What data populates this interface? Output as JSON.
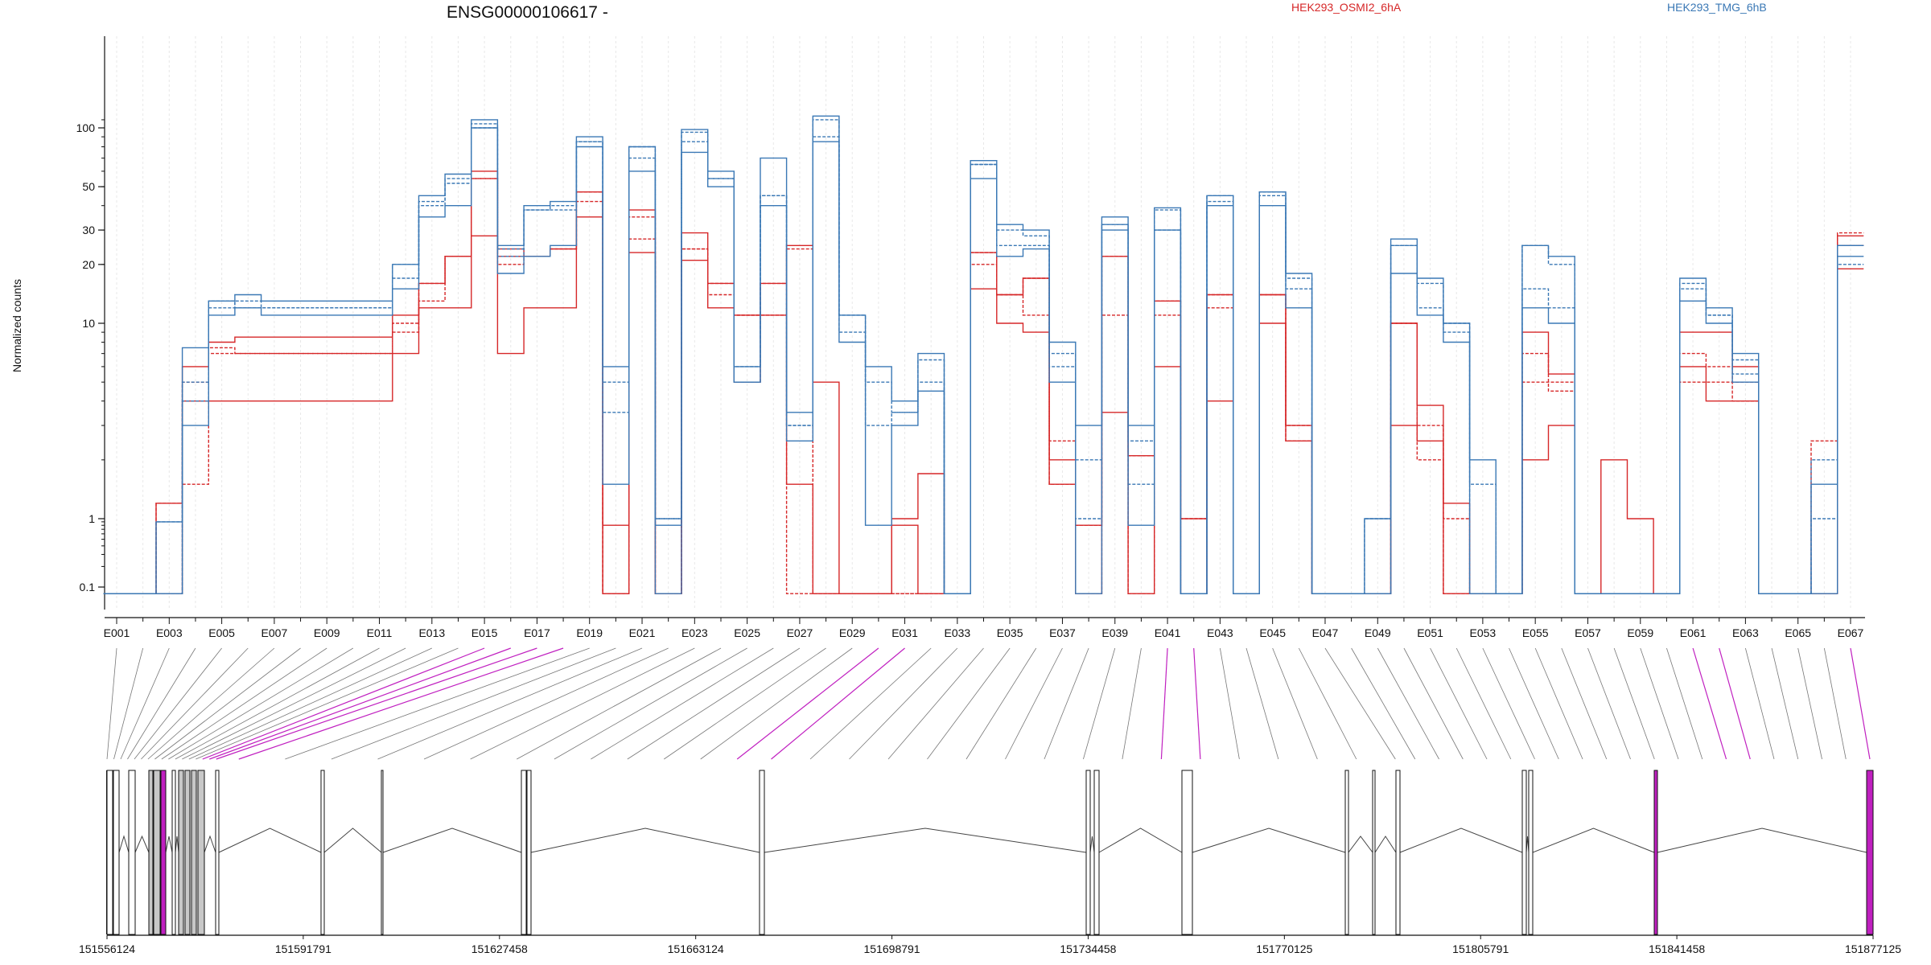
{
  "chart_data": {
    "type": "line",
    "title": "ENSG00000106617 -",
    "ylabel": "Normalized counts",
    "xlabel": "",
    "y_scale": "log",
    "y_ticks": [
      "100",
      "50",
      "30",
      "20",
      "10",
      "1",
      "0.1"
    ],
    "x_tick_labels": [
      "E001",
      "E003",
      "E005",
      "E007",
      "E009",
      "E011",
      "E013",
      "E015",
      "E017",
      "E019",
      "E021",
      "E023",
      "E025",
      "E027",
      "E029",
      "E031",
      "E033",
      "E035",
      "E037",
      "E039",
      "E041",
      "E043",
      "E045",
      "E047",
      "E049",
      "E051",
      "E053",
      "E055",
      "E057",
      "E059",
      "E061",
      "E063",
      "E065",
      "E067"
    ],
    "legend": [
      {
        "label": "HEK293_OSMI2_6hA",
        "color": "#d62728"
      },
      {
        "label": "HEK293_TMG_6hB",
        "color": "#3a78b5"
      }
    ],
    "genomic_ticks": [
      "151556124",
      "151591791",
      "151627458",
      "151663124",
      "151698791",
      "151734458",
      "151770125",
      "151805791",
      "151841458",
      "151877125"
    ],
    "highlight_color": "#c020c0",
    "series": [
      {
        "group": "HEK293_OSMI2_6hA",
        "color": "#d62728",
        "values": [
          0.08,
          0.08,
          1.2,
          6.0,
          8.0,
          8.5,
          8.5,
          8.5,
          8.5,
          8.5,
          8.5,
          11.0,
          16.0,
          22.0,
          60.0,
          24.0,
          22.0,
          24.0,
          47.0,
          0.08,
          38.0,
          0.08,
          29.0,
          16.0,
          11.0,
          16.0,
          25.0,
          5.0,
          0.08,
          0.08,
          0.8,
          0.08,
          0.08,
          23.0,
          14.0,
          17.0,
          2.0,
          0.8,
          22.0,
          2.1,
          13.0,
          1.0,
          14.0,
          0.08,
          14.0,
          3.0,
          0.08,
          0.08,
          0.08,
          10.0,
          3.8,
          1.2,
          0.08,
          0.08,
          9.0,
          5.5,
          0.08,
          2.0,
          1.0,
          0.08,
          9.0,
          9.0,
          6.0,
          0.08,
          0.08,
          0.08,
          28.0
        ]
      },
      {
        "group": "HEK293_OSMI2_6hA",
        "color": "#d62728",
        "values": [
          0.08,
          0.08,
          1.2,
          5.0,
          7.5,
          7.0,
          7.0,
          7.0,
          7.0,
          7.0,
          7.0,
          10.0,
          13.0,
          22.0,
          55.0,
          20.0,
          22.0,
          24.0,
          42.0,
          0.08,
          35.0,
          0.08,
          24.0,
          14.0,
          11.0,
          11.0,
          24.0,
          0.08,
          0.08,
          0.08,
          0.08,
          0.08,
          0.08,
          20.0,
          14.0,
          11.0,
          1.5,
          0.08,
          11.0,
          0.08,
          11.0,
          0.08,
          12.0,
          0.08,
          14.0,
          3.0,
          0.08,
          0.08,
          0.08,
          10.0,
          3.0,
          0.08,
          0.08,
          0.08,
          7.0,
          4.5,
          0.08,
          0.08,
          0.08,
          0.08,
          7.0,
          6.0,
          5.0,
          0.08,
          0.08,
          0.08,
          25.0
        ]
      },
      {
        "group": "HEK293_OSMI2_6hA",
        "color": "#d62728",
        "values": [
          0.08,
          0.08,
          0.08,
          4.0,
          4.0,
          4.0,
          4.0,
          4.0,
          4.0,
          4.0,
          4.0,
          7.0,
          12.0,
          12.0,
          28.0,
          7.0,
          12.0,
          12.0,
          35.0,
          0.8,
          23.0,
          0.08,
          21.0,
          12.0,
          5.0,
          11.0,
          1.5,
          0.08,
          0.08,
          0.08,
          1.0,
          1.7,
          0.08,
          15.0,
          10.0,
          9.0,
          1.5,
          0.08,
          3.5,
          0.08,
          6.0,
          0.08,
          4.0,
          0.08,
          10.0,
          2.5,
          0.08,
          0.08,
          0.08,
          3.0,
          2.5,
          0.08,
          0.08,
          0.08,
          2.0,
          3.0,
          0.08,
          0.08,
          0.08,
          0.08,
          6.0,
          4.0,
          4.0,
          0.08,
          0.08,
          0.08,
          19.0
        ]
      },
      {
        "group": "HEK293_OSMI2_6hA",
        "color": "#d62728",
        "values": [
          0.08,
          0.08,
          0.08,
          1.5,
          7.0,
          7.0,
          7.0,
          7.0,
          7.0,
          7.0,
          7.0,
          9.0,
          16.0,
          22.0,
          55.0,
          22.0,
          22.0,
          24.0,
          47.0,
          0.08,
          27.0,
          0.08,
          24.0,
          16.0,
          11.0,
          16.0,
          0.08,
          0.08,
          0.08,
          0.08,
          0.08,
          0.08,
          0.08,
          23.0,
          14.0,
          17.0,
          2.5,
          0.8,
          22.0,
          2.1,
          13.0,
          1.0,
          14.0,
          0.08,
          14.0,
          2.5,
          0.08,
          0.08,
          0.08,
          10.0,
          2.0,
          1.0,
          0.08,
          0.08,
          5.0,
          5.0,
          0.08,
          0.08,
          0.08,
          0.08,
          5.0,
          5.0,
          4.0,
          0.08,
          0.08,
          2.5,
          29.0
        ]
      },
      {
        "group": "HEK293_TMG_6hB",
        "color": "#3a78b5",
        "values": [
          0.08,
          0.08,
          0.9,
          7.5,
          13.0,
          14.0,
          13.0,
          13.0,
          13.0,
          13.0,
          13.0,
          20.0,
          45.0,
          58.0,
          110.0,
          25.0,
          40.0,
          42.0,
          90.0,
          6.0,
          80.0,
          0.08,
          98.0,
          60.0,
          6.0,
          70.0,
          3.5,
          115.0,
          11.0,
          6.0,
          4.0,
          7.0,
          0.08,
          68.0,
          32.0,
          30.0,
          8.0,
          3.0,
          35.0,
          3.0,
          39.0,
          0.08,
          45.0,
          0.08,
          47.0,
          18.0,
          0.08,
          0.08,
          1.0,
          27.0,
          17.0,
          10.0,
          2.0,
          0.08,
          25.0,
          22.0,
          0.08,
          0.08,
          0.08,
          0.08,
          17.0,
          12.0,
          7.0,
          0.08,
          0.08,
          0.08,
          22.0
        ]
      },
      {
        "group": "HEK293_TMG_6hB",
        "color": "#3a78b5",
        "values": [
          0.08,
          0.08,
          0.9,
          5.0,
          12.0,
          13.0,
          12.0,
          12.0,
          12.0,
          12.0,
          12.0,
          17.0,
          40.0,
          52.0,
          105.0,
          22.0,
          38.0,
          40.0,
          85.0,
          3.5,
          70.0,
          1.0,
          85.0,
          55.0,
          5.0,
          45.0,
          3.0,
          90.0,
          9.0,
          3.0,
          3.5,
          5.0,
          0.08,
          65.0,
          25.0,
          25.0,
          6.0,
          1.0,
          32.0,
          1.5,
          30.0,
          0.08,
          42.0,
          0.08,
          45.0,
          15.0,
          0.08,
          0.08,
          0.08,
          25.0,
          12.0,
          9.0,
          0.08,
          0.08,
          15.0,
          12.0,
          0.08,
          0.08,
          0.08,
          0.08,
          15.0,
          11.0,
          5.5,
          0.08,
          0.08,
          1.0,
          20.0
        ]
      },
      {
        "group": "HEK293_TMG_6hB",
        "color": "#3a78b5",
        "values": [
          0.08,
          0.08,
          0.08,
          3.0,
          11.0,
          12.0,
          11.0,
          11.0,
          11.0,
          11.0,
          11.0,
          15.0,
          35.0,
          40.0,
          100.0,
          18.0,
          22.0,
          25.0,
          80.0,
          1.5,
          60.0,
          0.8,
          75.0,
          50.0,
          5.0,
          40.0,
          2.5,
          85.0,
          8.0,
          0.8,
          3.0,
          4.5,
          0.08,
          55.0,
          22.0,
          24.0,
          5.0,
          0.08,
          30.0,
          0.8,
          30.0,
          0.08,
          40.0,
          0.08,
          40.0,
          12.0,
          0.08,
          0.08,
          0.08,
          18.0,
          11.0,
          8.0,
          0.08,
          0.08,
          12.0,
          10.0,
          0.08,
          0.08,
          0.08,
          0.08,
          13.0,
          10.0,
          5.0,
          0.08,
          0.08,
          1.5,
          25.0
        ]
      },
      {
        "group": "HEK293_TMG_6hB",
        "color": "#3a78b5",
        "values": [
          0.08,
          0.08,
          0.08,
          4.0,
          13.0,
          12.0,
          12.0,
          12.0,
          12.0,
          12.0,
          12.0,
          20.0,
          42.0,
          55.0,
          100.0,
          24.0,
          38.0,
          38.0,
          85.0,
          5.0,
          80.0,
          1.0,
          95.0,
          55.0,
          6.0,
          45.0,
          3.0,
          110.0,
          11.0,
          5.0,
          3.5,
          6.5,
          0.08,
          65.0,
          30.0,
          28.0,
          7.0,
          2.0,
          32.0,
          2.5,
          38.0,
          0.08,
          45.0,
          0.08,
          47.0,
          17.0,
          0.08,
          0.08,
          1.0,
          25.0,
          16.0,
          10.0,
          1.5,
          0.08,
          25.0,
          20.0,
          0.08,
          0.08,
          0.08,
          0.08,
          16.0,
          11.0,
          6.5,
          0.08,
          0.08,
          2.0,
          25.0
        ]
      }
    ]
  }
}
